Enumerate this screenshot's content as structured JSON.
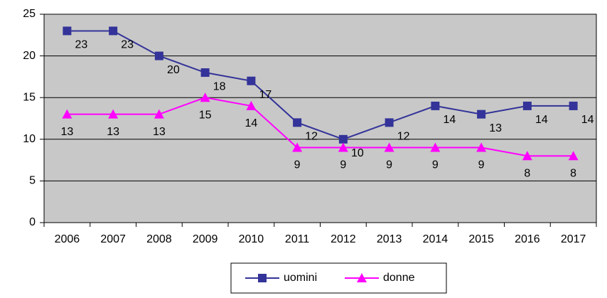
{
  "chart_data": {
    "type": "line",
    "categories": [
      "2006",
      "2007",
      "2008",
      "2009",
      "2010",
      "2011",
      "2012",
      "2013",
      "2014",
      "2015",
      "2016",
      "2017"
    ],
    "series": [
      {
        "name": "uomini",
        "color": "#333399",
        "marker": "square",
        "values": [
          23,
          23,
          20,
          18,
          17,
          12,
          10,
          12,
          14,
          13,
          14,
          14
        ]
      },
      {
        "name": "donne",
        "color": "#ff00ff",
        "marker": "triangle",
        "values": [
          13,
          13,
          13,
          15,
          14,
          9,
          9,
          9,
          9,
          9,
          8,
          8
        ]
      }
    ],
    "ylim": [
      0,
      25
    ],
    "yticks": [
      0,
      5,
      10,
      15,
      20,
      25
    ],
    "grid": true,
    "legend": "bottom"
  }
}
